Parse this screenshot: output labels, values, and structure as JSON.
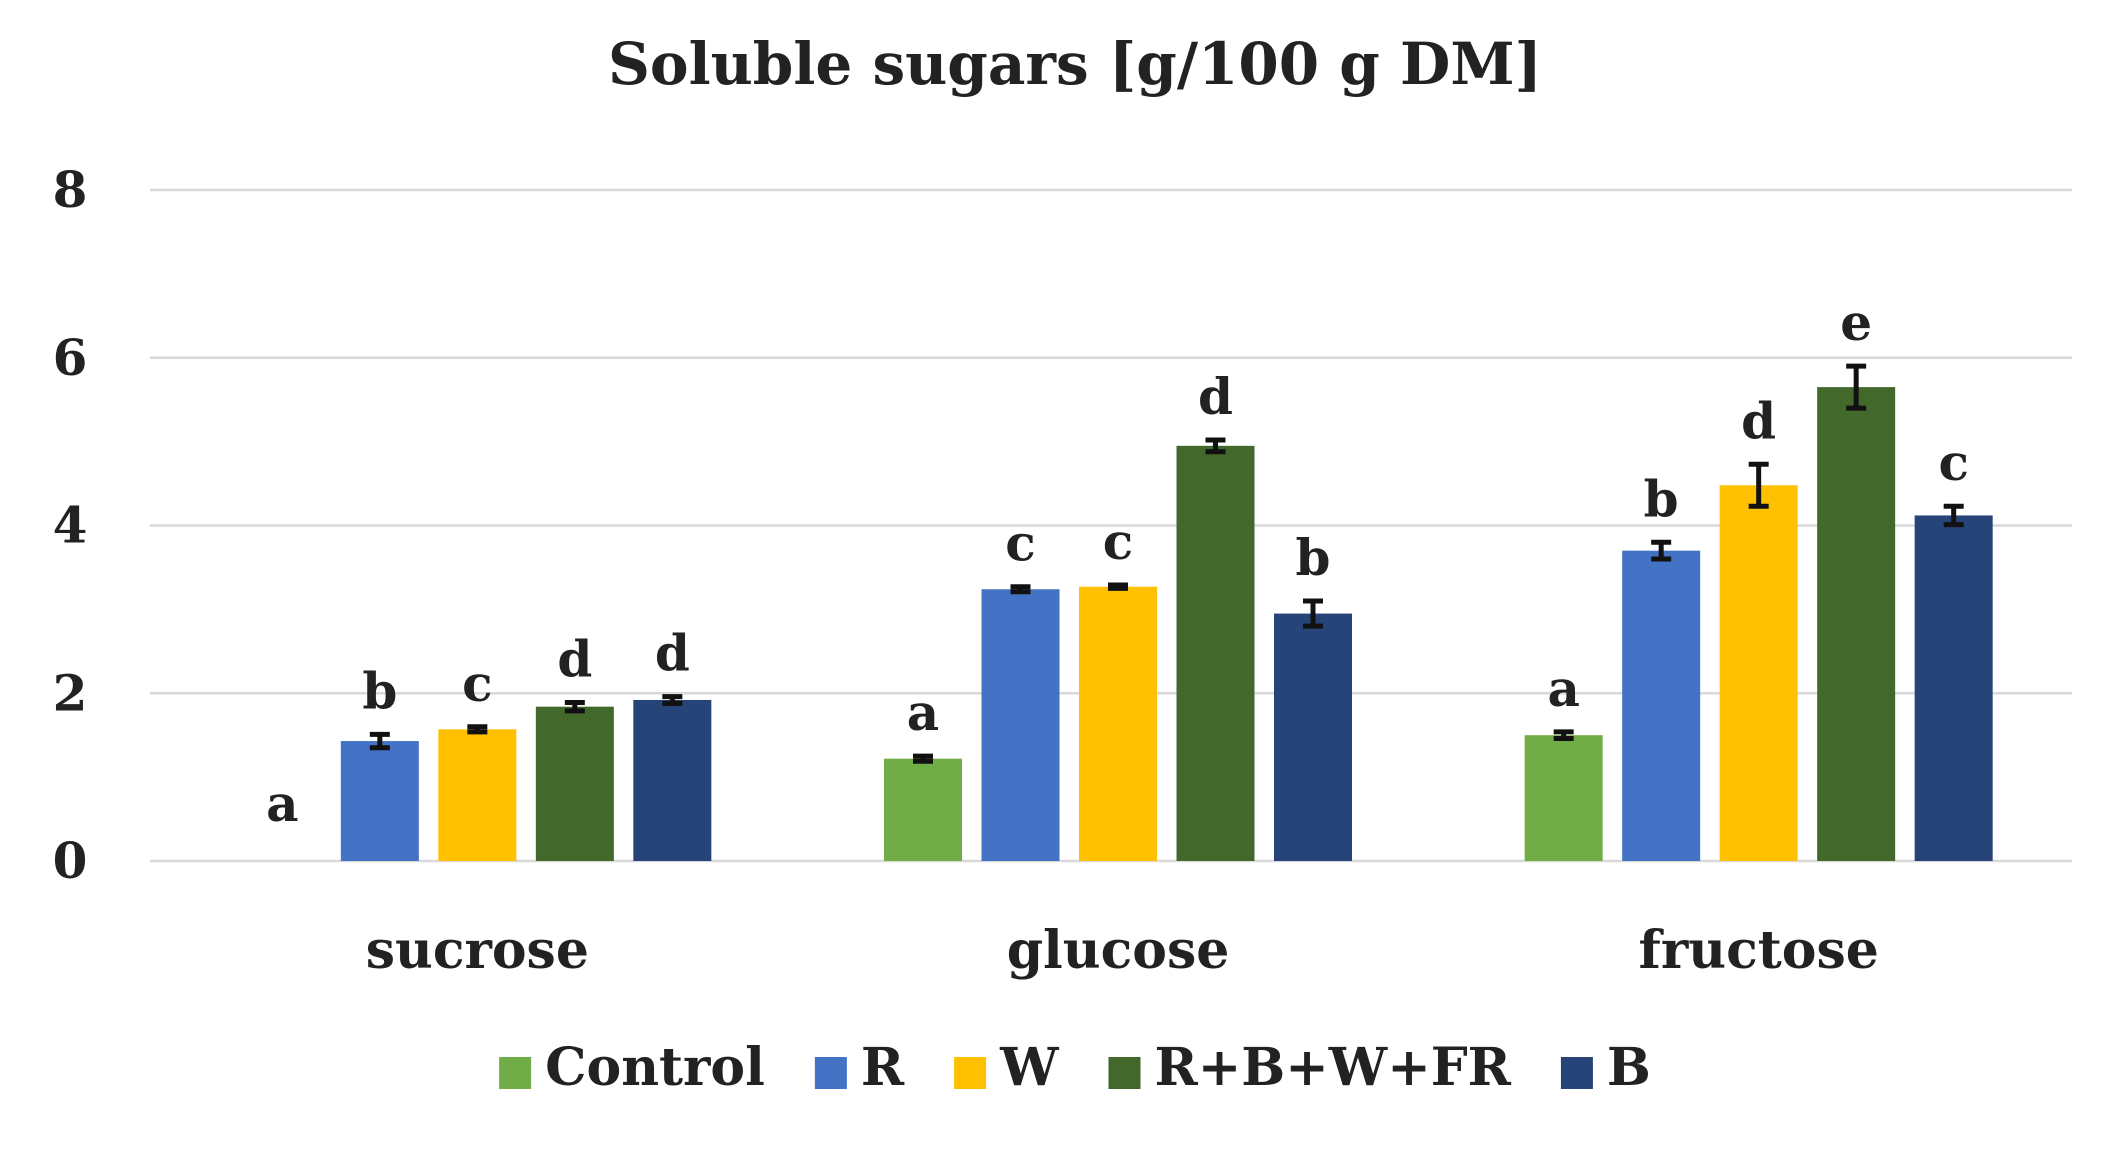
{
  "chart_data": {
    "type": "bar",
    "title": "Soluble sugars [g/100 g DM]",
    "xlabel": "",
    "ylabel": "",
    "ylim": [
      0,
      8
    ],
    "yticks": [
      "0",
      "2",
      "4",
      "6",
      "8"
    ],
    "grid": true,
    "legend_position": "bottom",
    "categories": [
      "sucrose",
      "glucose",
      "fructose"
    ],
    "series": [
      {
        "name": "Control",
        "color": "#70ad47",
        "values": [
          0,
          1.22,
          1.5
        ],
        "errors": [
          0,
          0.03,
          0.04
        ],
        "labels": [
          "a",
          "a",
          "a"
        ]
      },
      {
        "name": "R",
        "color": "#4472c4",
        "values": [
          1.43,
          3.24,
          3.7
        ],
        "errors": [
          0.08,
          0.03,
          0.1
        ],
        "labels": [
          "b",
          "c",
          "b"
        ]
      },
      {
        "name": "W",
        "color": "#ffc000",
        "values": [
          1.57,
          3.27,
          4.48
        ],
        "errors": [
          0.03,
          0.02,
          0.25
        ],
        "labels": [
          "c",
          "c",
          "d"
        ]
      },
      {
        "name": "R+B+W+FR",
        "color": "#43682b",
        "values": [
          1.84,
          4.95,
          5.65
        ],
        "errors": [
          0.05,
          0.07,
          0.25
        ],
        "labels": [
          "d",
          "d",
          "e"
        ]
      },
      {
        "name": "B",
        "color": "#264478",
        "values": [
          1.92,
          2.95,
          4.12
        ],
        "errors": [
          0.04,
          0.15,
          0.11
        ],
        "labels": [
          "d",
          "b",
          "c"
        ]
      }
    ]
  }
}
